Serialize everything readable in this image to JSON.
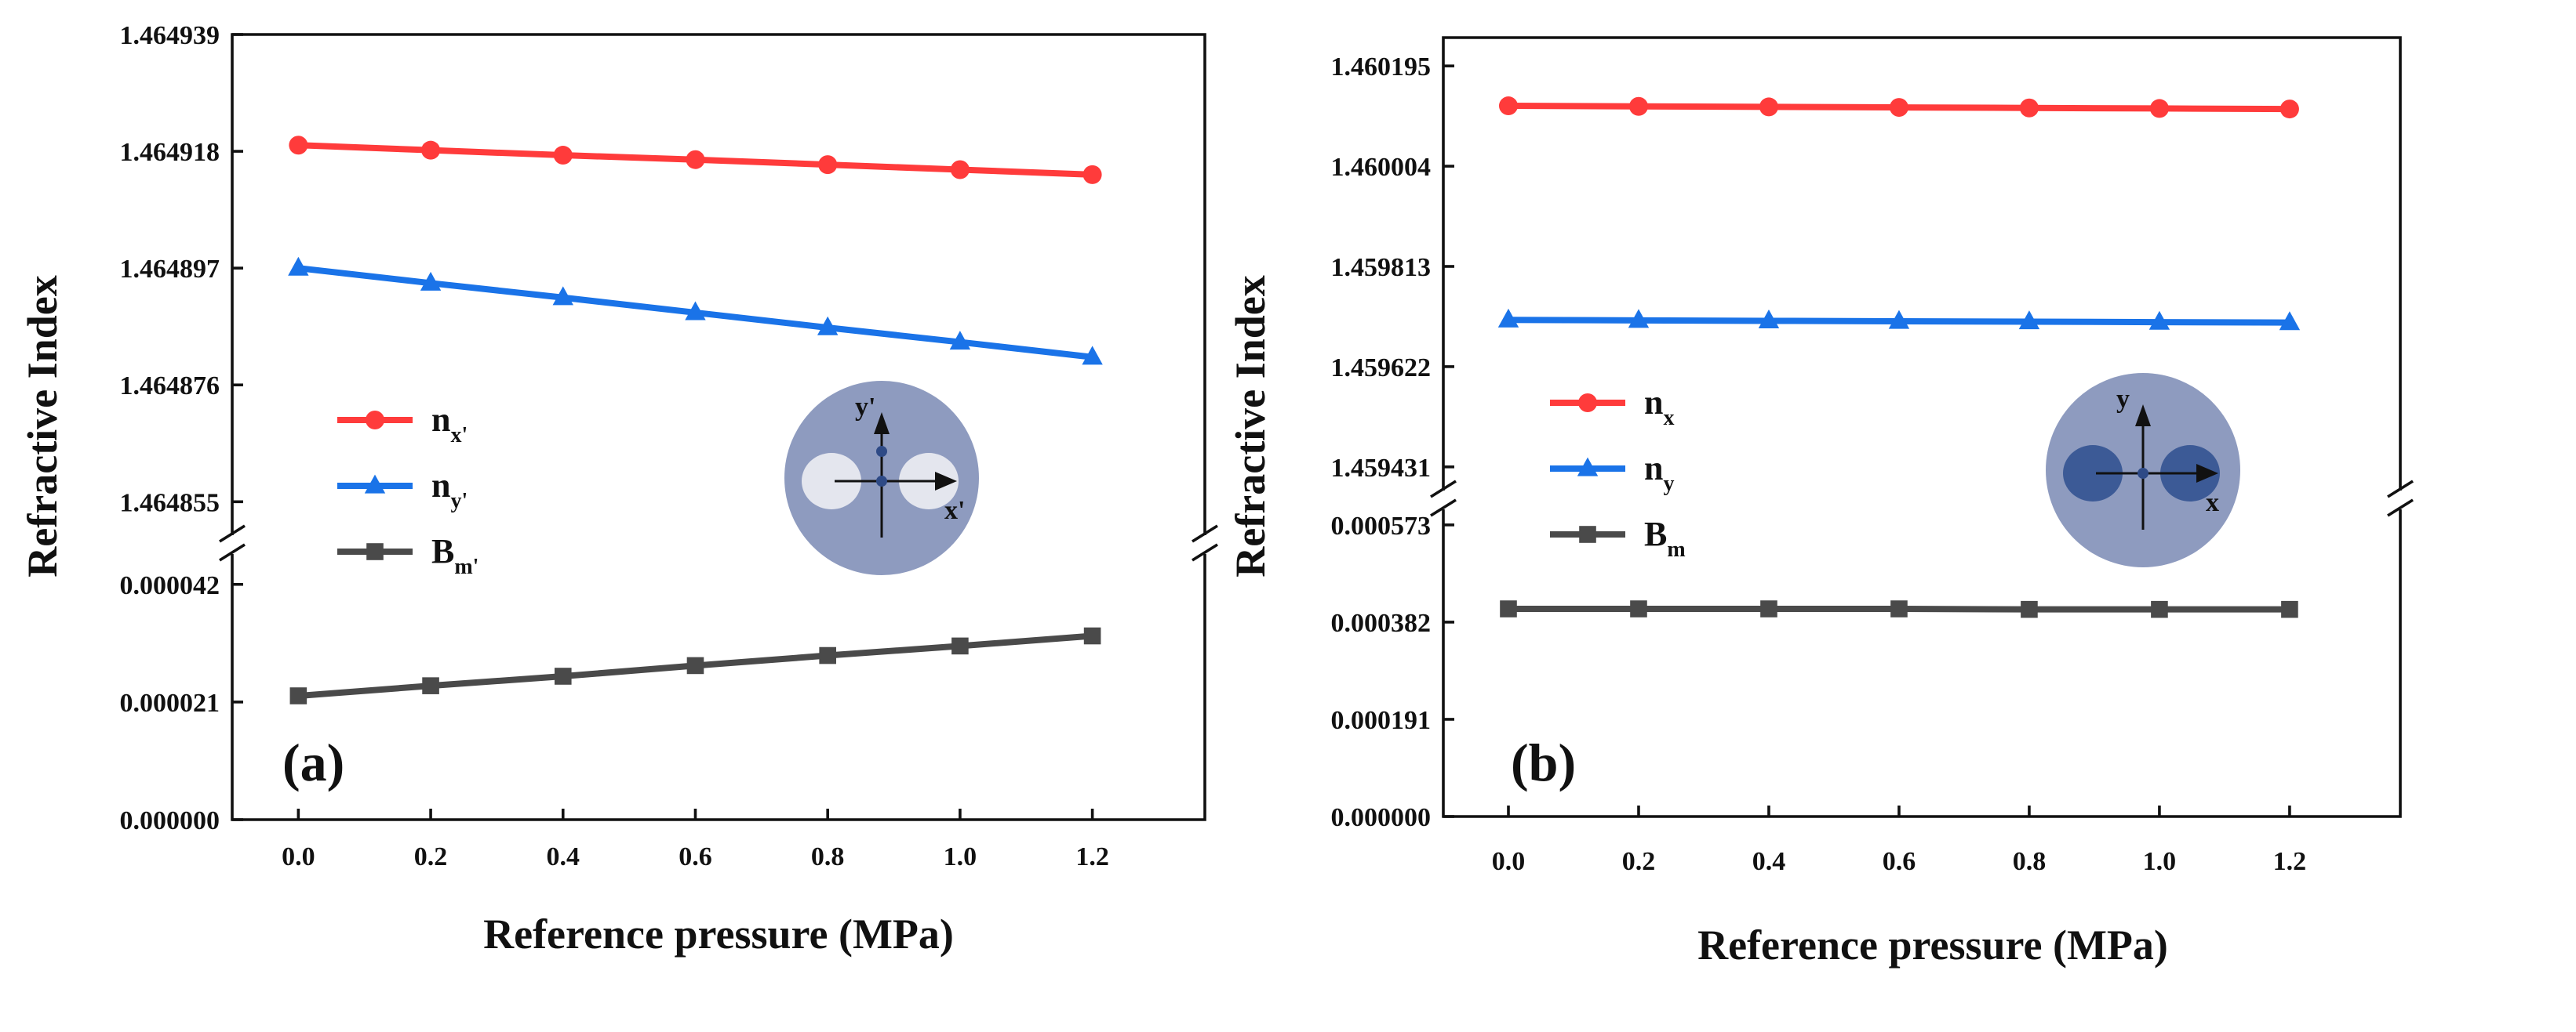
{
  "chart_data": [
    {
      "type": "line",
      "panel_label": "(a)",
      "xlabel": "Reference pressure (MPa)",
      "ylabel": "Refractive Index",
      "x": [
        0.0,
        0.2,
        0.4,
        0.6,
        0.8,
        1.0,
        1.2
      ],
      "x_ticks": [
        "0.0",
        "0.2",
        "0.4",
        "0.6",
        "0.8",
        "1.0",
        "1.2"
      ],
      "xlim": [
        -0.1,
        1.37
      ],
      "y_axis_broken": true,
      "y_segments": [
        {
          "range": [
            1.464848,
            1.464939
          ],
          "ticks": [
            "1.464939",
            "1.464918",
            "1.464897",
            "1.464876",
            "1.464855"
          ]
        },
        {
          "range": [
            0,
            4.84e-05
          ],
          "ticks": [
            "0.000042",
            "0.000021",
            "0.000000"
          ]
        }
      ],
      "legend_placement": "center-left",
      "series": [
        {
          "name": "n",
          "sub": "x'",
          "color": "#ff3b3b",
          "marker": "circle",
          "segment": 0,
          "values": [
            1.4649191,
            1.4649182,
            1.4649173,
            1.4649165,
            1.4649156,
            1.4649147,
            1.4649138
          ]
        },
        {
          "name": "n",
          "sub": "y'",
          "color": "#1a73e8",
          "marker": "triangle",
          "segment": 0,
          "values": [
            1.464897,
            1.4648943,
            1.4648917,
            1.464889,
            1.4648863,
            1.4648837,
            1.464881
          ]
        },
        {
          "name": "B",
          "sub": "m'",
          "color": "#4a4a4a",
          "marker": "square",
          "segment": 1,
          "values": [
            2.21e-05,
            2.39e-05,
            2.56e-05,
            2.75e-05,
            2.93e-05,
            3.1e-05,
            3.28e-05
          ]
        }
      ],
      "inset": {
        "y_label": "y'",
        "x_label": "x'",
        "cladding_color": "#8e9bbf",
        "core_color": "#e4e6ee"
      }
    },
    {
      "type": "line",
      "panel_label": "(b)",
      "xlabel": "Reference pressure (MPa)",
      "ylabel": "Refractive Index",
      "x": [
        0.0,
        0.2,
        0.4,
        0.6,
        0.8,
        1.0,
        1.2
      ],
      "x_ticks": [
        "0.0",
        "0.2",
        "0.4",
        "0.6",
        "0.8",
        "1.0",
        "1.2"
      ],
      "xlim": [
        -0.1,
        1.37
      ],
      "y_axis_broken": true,
      "y_segments": [
        {
          "range": [
            1.459371,
            1.460249
          ],
          "ticks": [
            "1.460195",
            "1.460004",
            "1.459813",
            "1.459622",
            "1.459431"
          ]
        },
        {
          "range": [
            0,
            0.000619
          ],
          "ticks": [
            "0.000573",
            "0.000382",
            "0.000191",
            "0.000000"
          ]
        }
      ],
      "legend_placement": "center-left",
      "series": [
        {
          "name": "n",
          "sub": "x",
          "color": "#ff3b3b",
          "marker": "circle",
          "segment": 0,
          "values": [
            1.460119,
            1.460118,
            1.460117,
            1.460116,
            1.460115,
            1.460114,
            1.460113
          ]
        },
        {
          "name": "n",
          "sub": "y",
          "color": "#1a73e8",
          "marker": "triangle",
          "segment": 0,
          "values": [
            1.459711,
            1.4597102,
            1.4597093,
            1.4597085,
            1.4597077,
            1.4597068,
            1.459706
          ]
        },
        {
          "name": "B",
          "sub": "m",
          "color": "#4a4a4a",
          "marker": "square",
          "segment": 1,
          "values": [
            0.000408,
            0.000408,
            0.000408,
            0.000408,
            0.000407,
            0.000407,
            0.000407
          ]
        }
      ],
      "inset": {
        "y_label": "y",
        "x_label": "x",
        "cladding_color": "#8e9bbf",
        "core_color": "#3c5a96"
      }
    }
  ]
}
